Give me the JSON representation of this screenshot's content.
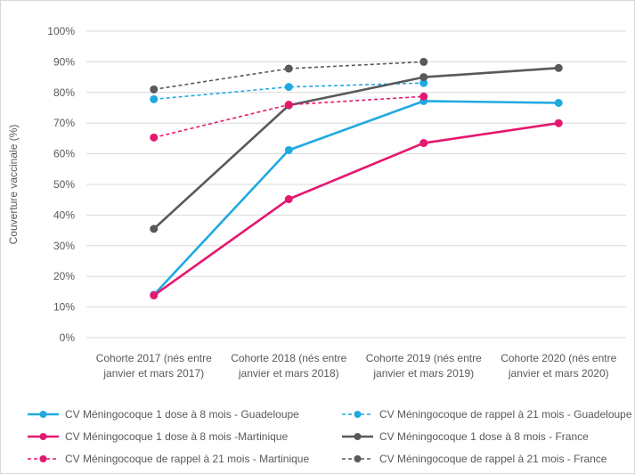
{
  "chart_data": {
    "type": "line",
    "title": "",
    "xlabel": "",
    "ylabel": "Couverture vaccinale (%)",
    "ylim": [
      0,
      100
    ],
    "yticks": [
      "0%",
      "10%",
      "20%",
      "30%",
      "40%",
      "50%",
      "60%",
      "70%",
      "80%",
      "90%",
      "100%"
    ],
    "categories": [
      [
        "Cohorte 2017 (nés entre",
        "janvier et mars 2017)"
      ],
      [
        "Cohorte 2018 (nés entre",
        "janvier et mars 2018)"
      ],
      [
        "Cohorte 2019 (nés entre",
        "janvier et mars 2019)"
      ],
      [
        "Cohorte 2020 (nés entre",
        "janvier et mars 2020)"
      ]
    ],
    "grid": true,
    "legend_position": "bottom",
    "series": [
      {
        "name": "CV Méningocoque 1 dose à 8 mois - Guadeloupe",
        "values": [
          14,
          61.2,
          77.2,
          76.6
        ],
        "color": "#1fa9e1",
        "dashed": false
      },
      {
        "name": "CV Méningocoque de rappel à 21 mois - Guadeloupe",
        "values": [
          77.8,
          81.8,
          83.1,
          null
        ],
        "color": "#1fa9e1",
        "dashed": true
      },
      {
        "name": "CV Méningocoque 1 dose à 8 mois -Martinique",
        "values": [
          13.8,
          45.2,
          63.5,
          70
        ],
        "color": "#e6176f",
        "dashed": false
      },
      {
        "name": "CV Méningocoque 1 dose à 8 mois - France",
        "values": [
          35.5,
          75.8,
          85,
          88
        ],
        "color": "#595959",
        "dashed": false
      },
      {
        "name": "CV Méningocoque de rappel à 21 mois - Martinique",
        "values": [
          65.3,
          76,
          78.7,
          null
        ],
        "color": "#e6176f",
        "dashed": true
      },
      {
        "name": "CV Méningocoque de rappel à 21 mois - France",
        "values": [
          81,
          87.8,
          90,
          null
        ],
        "color": "#595959",
        "dashed": true
      }
    ]
  }
}
